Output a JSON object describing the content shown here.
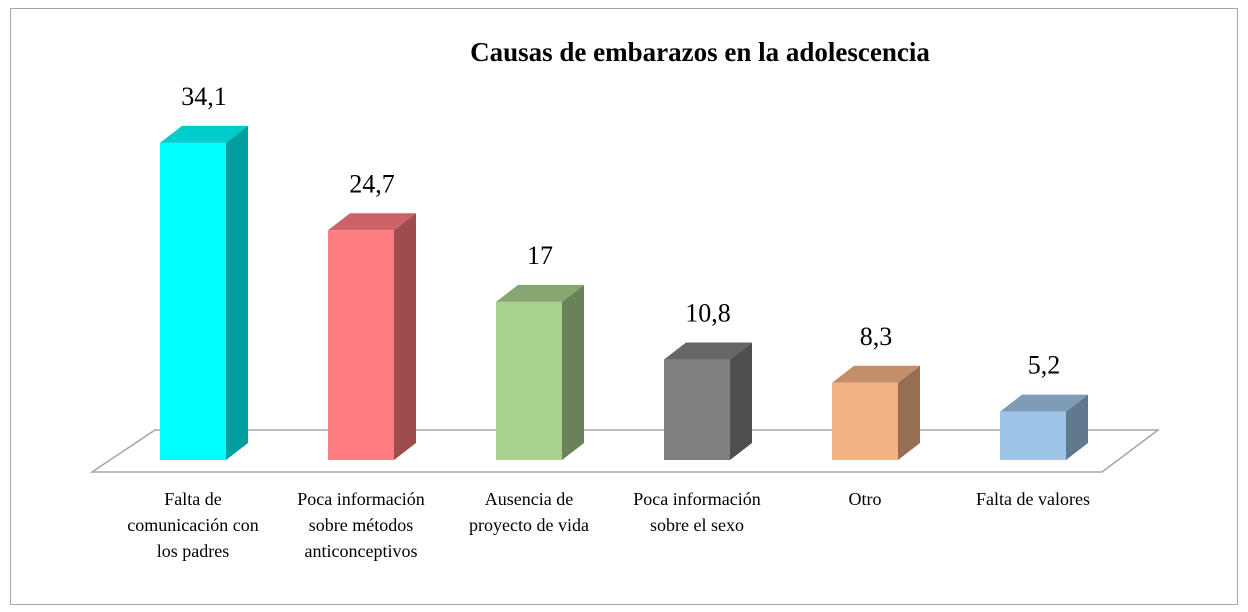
{
  "chart_data": {
    "type": "bar3d",
    "title": "Causas de embarazos en la adolescencia",
    "categories": [
      "Falta de comunicación con los padres",
      "Poca información sobre métodos anticonceptivos",
      "Ausencia de proyecto de vida",
      "Poca información sobre el sexo",
      "Otro",
      "Falta de valores"
    ],
    "values": [
      34.1,
      24.7,
      17,
      10.8,
      8.3,
      5.2
    ],
    "value_labels": [
      "34,1",
      "24,7",
      "17",
      "10,8",
      "8,3",
      "5,2"
    ],
    "colors": [
      "#00ffff",
      "#ff7c80",
      "#a9d18e",
      "#7f7f7f",
      "#f4b183",
      "#9dc3e6"
    ],
    "ylim": [
      0,
      40
    ]
  }
}
